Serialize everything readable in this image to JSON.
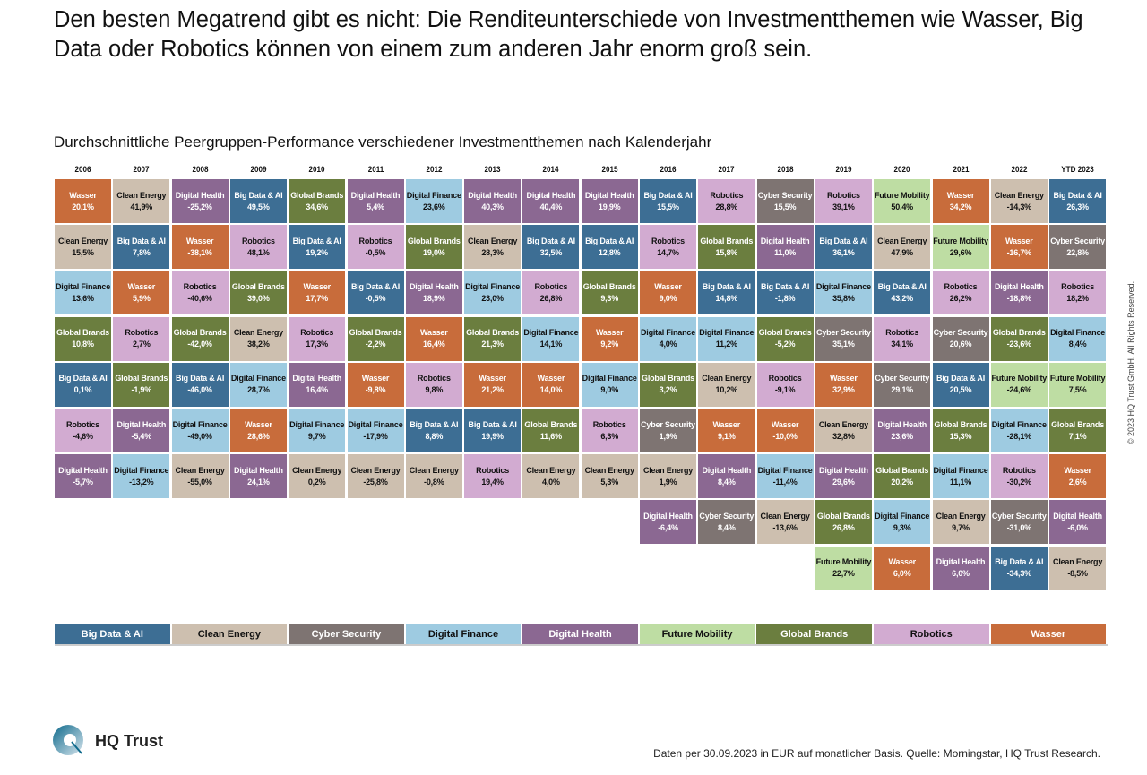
{
  "title": "Den besten Megatrend gibt es nicht: Die Renditeunterschiede von Investmentthemen wie Wasser, Big Data oder Robotics können von einem zum anderen Jahr enorm groß sein.",
  "chart_data": {
    "type": "table",
    "title": "Durchschnittliche Peergruppen-Performance verschiedener Investmentthemen nach Kalenderjahr",
    "legend_placement": "bottom",
    "themes": [
      {
        "name": "Big Data & AI",
        "color": "#3d6e94",
        "text": "#ffffff"
      },
      {
        "name": "Clean Energy",
        "color": "#cdbfaf",
        "text": "#111111"
      },
      {
        "name": "Cyber Security",
        "color": "#7e7472",
        "text": "#ffffff"
      },
      {
        "name": "Digital Finance",
        "color": "#9ecbe1",
        "text": "#111111"
      },
      {
        "name": "Digital Health",
        "color": "#8b6892",
        "text": "#ffffff"
      },
      {
        "name": "Future Mobility",
        "color": "#bedda3",
        "text": "#111111"
      },
      {
        "name": "Global Brands",
        "color": "#6b7e3f",
        "text": "#ffffff"
      },
      {
        "name": "Robotics",
        "color": "#d2abd1",
        "text": "#111111"
      },
      {
        "name": "Wasser",
        "color": "#c86c3b",
        "text": "#ffffff"
      }
    ],
    "columns": [
      {
        "year": "2006",
        "cells": [
          [
            "Wasser",
            "20,1%"
          ],
          [
            "Clean Energy",
            "15,5%"
          ],
          [
            "Digital Finance",
            "13,6%"
          ],
          [
            "Global Brands",
            "10,8%"
          ],
          [
            "Big Data & AI",
            "0,1%"
          ],
          [
            "Robotics",
            "-4,6%"
          ],
          [
            "Digital Health",
            "-5,7%"
          ]
        ]
      },
      {
        "year": "2007",
        "cells": [
          [
            "Clean Energy",
            "41,9%"
          ],
          [
            "Big Data & AI",
            "7,8%"
          ],
          [
            "Wasser",
            "5,9%"
          ],
          [
            "Robotics",
            "2,7%"
          ],
          [
            "Global Brands",
            "-1,9%"
          ],
          [
            "Digital Health",
            "-5,4%"
          ],
          [
            "Digital Finance",
            "-13,2%"
          ]
        ]
      },
      {
        "year": "2008",
        "cells": [
          [
            "Digital Health",
            "-25,2%"
          ],
          [
            "Wasser",
            "-38,1%"
          ],
          [
            "Robotics",
            "-40,6%"
          ],
          [
            "Global Brands",
            "-42,0%"
          ],
          [
            "Big Data & AI",
            "-46,0%"
          ],
          [
            "Digital Finance",
            "-49,0%"
          ],
          [
            "Clean Energy",
            "-55,0%"
          ]
        ]
      },
      {
        "year": "2009",
        "cells": [
          [
            "Big Data & AI",
            "49,5%"
          ],
          [
            "Robotics",
            "48,1%"
          ],
          [
            "Global Brands",
            "39,0%"
          ],
          [
            "Clean Energy",
            "38,2%"
          ],
          [
            "Digital Finance",
            "28,7%"
          ],
          [
            "Wasser",
            "28,6%"
          ],
          [
            "Digital Health",
            "24,1%"
          ]
        ]
      },
      {
        "year": "2010",
        "cells": [
          [
            "Global Brands",
            "34,6%"
          ],
          [
            "Big Data & AI",
            "19,2%"
          ],
          [
            "Wasser",
            "17,7%"
          ],
          [
            "Robotics",
            "17,3%"
          ],
          [
            "Digital Health",
            "16,4%"
          ],
          [
            "Digital Finance",
            "9,7%"
          ],
          [
            "Clean Energy",
            "0,2%"
          ]
        ]
      },
      {
        "year": "2011",
        "cells": [
          [
            "Digital Health",
            "5,4%"
          ],
          [
            "Robotics",
            "-0,5%"
          ],
          [
            "Big Data & AI",
            "-0,5%"
          ],
          [
            "Global Brands",
            "-2,2%"
          ],
          [
            "Wasser",
            "-9,8%"
          ],
          [
            "Digital Finance",
            "-17,9%"
          ],
          [
            "Clean Energy",
            "-25,8%"
          ]
        ]
      },
      {
        "year": "2012",
        "cells": [
          [
            "Digital Finance",
            "23,6%"
          ],
          [
            "Global Brands",
            "19,0%"
          ],
          [
            "Digital Health",
            "18,9%"
          ],
          [
            "Wasser",
            "16,4%"
          ],
          [
            "Robotics",
            "9,8%"
          ],
          [
            "Big Data & AI",
            "8,8%"
          ],
          [
            "Clean Energy",
            "-0,8%"
          ]
        ]
      },
      {
        "year": "2013",
        "cells": [
          [
            "Digital Health",
            "40,3%"
          ],
          [
            "Clean Energy",
            "28,3%"
          ],
          [
            "Digital Finance",
            "23,0%"
          ],
          [
            "Global Brands",
            "21,3%"
          ],
          [
            "Wasser",
            "21,2%"
          ],
          [
            "Big Data & AI",
            "19,9%"
          ],
          [
            "Robotics",
            "19,4%"
          ]
        ]
      },
      {
        "year": "2014",
        "cells": [
          [
            "Digital Health",
            "40,4%"
          ],
          [
            "Big Data & AI",
            "32,5%"
          ],
          [
            "Robotics",
            "26,8%"
          ],
          [
            "Digital Finance",
            "14,1%"
          ],
          [
            "Wasser",
            "14,0%"
          ],
          [
            "Global Brands",
            "11,6%"
          ],
          [
            "Clean Energy",
            "4,0%"
          ]
        ]
      },
      {
        "year": "2015",
        "cells": [
          [
            "Digital Health",
            "19,9%"
          ],
          [
            "Big Data & AI",
            "12,8%"
          ],
          [
            "Global Brands",
            "9,3%"
          ],
          [
            "Wasser",
            "9,2%"
          ],
          [
            "Digital Finance",
            "9,0%"
          ],
          [
            "Robotics",
            "6,3%"
          ],
          [
            "Clean Energy",
            "5,3%"
          ]
        ]
      },
      {
        "year": "2016",
        "cells": [
          [
            "Big Data & AI",
            "15,5%"
          ],
          [
            "Robotics",
            "14,7%"
          ],
          [
            "Wasser",
            "9,0%"
          ],
          [
            "Digital Finance",
            "4,0%"
          ],
          [
            "Global Brands",
            "3,2%"
          ],
          [
            "Cyber Security",
            "1,9%"
          ],
          [
            "Clean Energy",
            "1,9%"
          ],
          [
            "Digital Health",
            "-6,4%"
          ]
        ]
      },
      {
        "year": "2017",
        "cells": [
          [
            "Robotics",
            "28,8%"
          ],
          [
            "Global Brands",
            "15,8%"
          ],
          [
            "Big Data & AI",
            "14,8%"
          ],
          [
            "Digital Finance",
            "11,2%"
          ],
          [
            "Clean Energy",
            "10,2%"
          ],
          [
            "Wasser",
            "9,1%"
          ],
          [
            "Digital Health",
            "8,4%"
          ],
          [
            "Cyber Security",
            "8,4%"
          ]
        ]
      },
      {
        "year": "2018",
        "cells": [
          [
            "Cyber Security",
            "15,5%"
          ],
          [
            "Digital Health",
            "11,0%"
          ],
          [
            "Big Data & AI",
            "-1,8%"
          ],
          [
            "Global Brands",
            "-5,2%"
          ],
          [
            "Robotics",
            "-9,1%"
          ],
          [
            "Wasser",
            "-10,0%"
          ],
          [
            "Digital Finance",
            "-11,4%"
          ],
          [
            "Clean Energy",
            "-13,6%"
          ]
        ]
      },
      {
        "year": "2019",
        "cells": [
          [
            "Robotics",
            "39,1%"
          ],
          [
            "Big Data & AI",
            "36,1%"
          ],
          [
            "Digital Finance",
            "35,8%"
          ],
          [
            "Cyber Security",
            "35,1%"
          ],
          [
            "Wasser",
            "32,9%"
          ],
          [
            "Clean Energy",
            "32,8%"
          ],
          [
            "Digital Health",
            "29,6%"
          ],
          [
            "Global Brands",
            "26,8%"
          ],
          [
            "Future Mobility",
            "22,7%"
          ]
        ]
      },
      {
        "year": "2020",
        "cells": [
          [
            "Future Mobility",
            "50,4%"
          ],
          [
            "Clean Energy",
            "47,9%"
          ],
          [
            "Big Data & AI",
            "43,2%"
          ],
          [
            "Robotics",
            "34,1%"
          ],
          [
            "Cyber Security",
            "29,1%"
          ],
          [
            "Digital Health",
            "23,6%"
          ],
          [
            "Global Brands",
            "20,2%"
          ],
          [
            "Digital Finance",
            "9,3%"
          ],
          [
            "Wasser",
            "6,0%"
          ]
        ]
      },
      {
        "year": "2021",
        "cells": [
          [
            "Wasser",
            "34,2%"
          ],
          [
            "Future Mobility",
            "29,6%"
          ],
          [
            "Robotics",
            "26,2%"
          ],
          [
            "Cyber Security",
            "20,6%"
          ],
          [
            "Big Data & AI",
            "20,5%"
          ],
          [
            "Global Brands",
            "15,3%"
          ],
          [
            "Digital Finance",
            "11,1%"
          ],
          [
            "Clean Energy",
            "9,7%"
          ],
          [
            "Digital Health",
            "6,0%"
          ]
        ]
      },
      {
        "year": "2022",
        "cells": [
          [
            "Clean Energy",
            "-14,3%"
          ],
          [
            "Wasser",
            "-16,7%"
          ],
          [
            "Digital Health",
            "-18,8%"
          ],
          [
            "Global Brands",
            "-23,6%"
          ],
          [
            "Future Mobility",
            "-24,6%"
          ],
          [
            "Digital Finance",
            "-28,1%"
          ],
          [
            "Robotics",
            "-30,2%"
          ],
          [
            "Cyber Security",
            "-31,0%"
          ],
          [
            "Big Data & AI",
            "-34,3%"
          ]
        ]
      },
      {
        "year": "YTD 2023",
        "cells": [
          [
            "Big Data & AI",
            "26,3%"
          ],
          [
            "Cyber Security",
            "22,8%"
          ],
          [
            "Robotics",
            "18,2%"
          ],
          [
            "Digital Finance",
            "8,4%"
          ],
          [
            "Future Mobility",
            "7,5%"
          ],
          [
            "Global Brands",
            "7,1%"
          ],
          [
            "Wasser",
            "2,6%"
          ],
          [
            "Digital Health",
            "-6,0%"
          ],
          [
            "Clean Energy",
            "-8,5%"
          ]
        ]
      }
    ]
  },
  "copyright": "© 2023 HQ Trust GmbH. All Rights Reserved.",
  "logo": {
    "text": "HQ Trust",
    "color": "#1a6e8e"
  },
  "source": "Daten per 30.09.2023 in EUR auf monatlicher Basis. Quelle: Morningstar, HQ Trust Research."
}
